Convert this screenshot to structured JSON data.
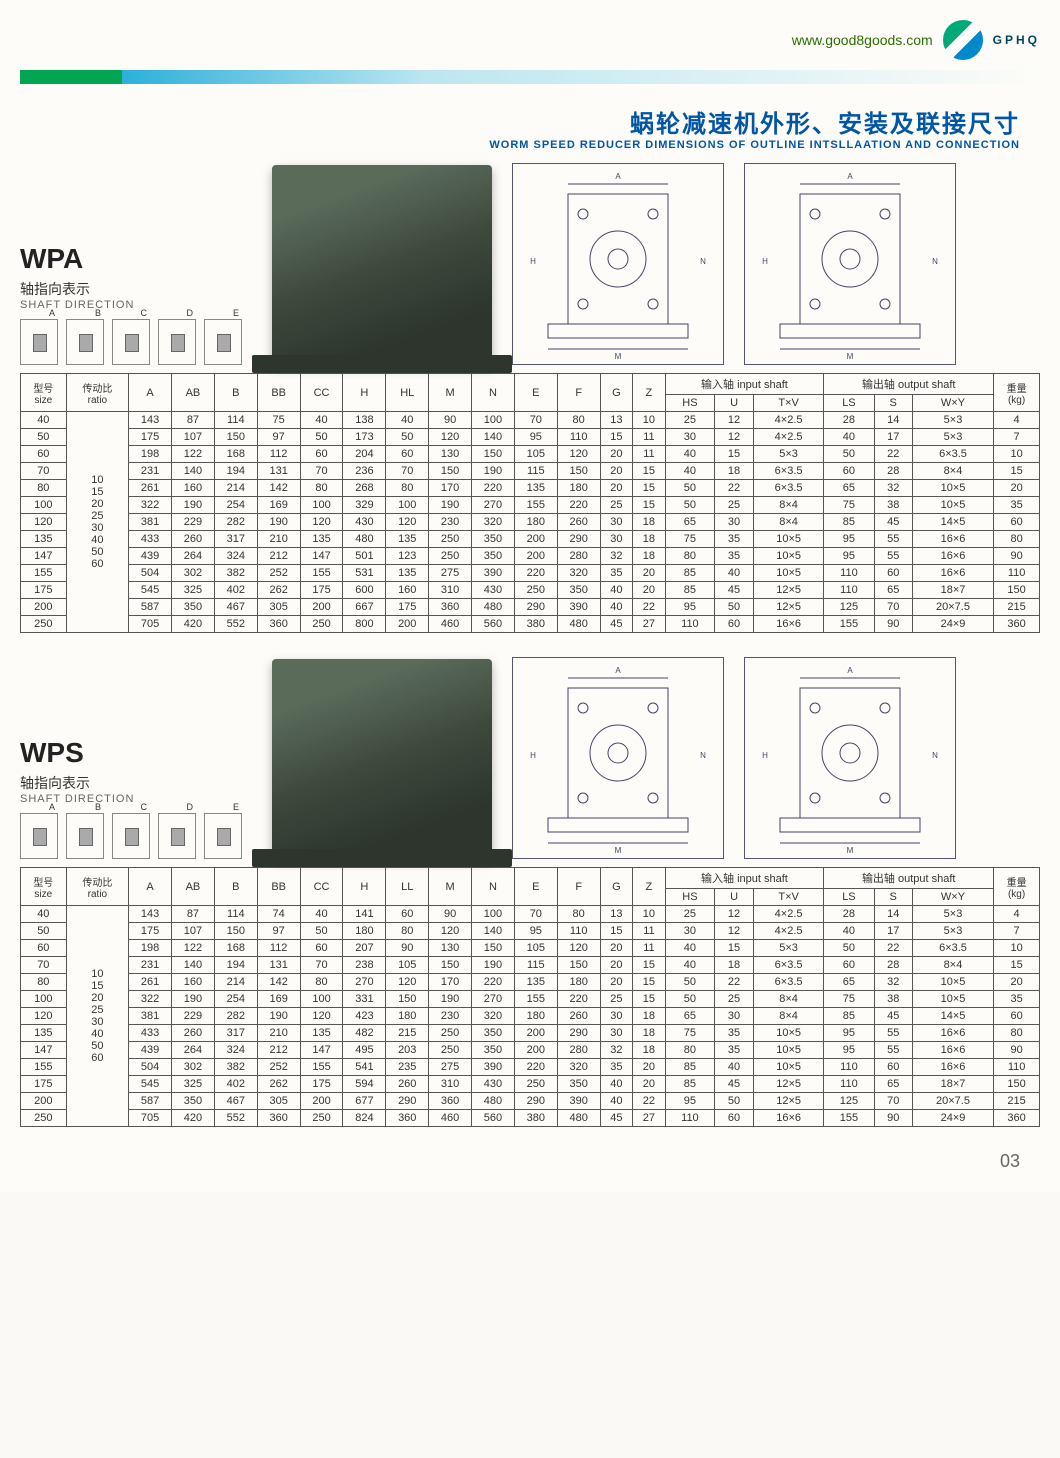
{
  "header": {
    "url": "www.good8goods.com",
    "brand": "GPHQ"
  },
  "title": {
    "cn": "蜗轮减速机外形、安装及联接尺寸",
    "en": "WORM SPEED REDUCER DIMENSIONS OF OUTLINE INTSLLAATION AND CONNECTION"
  },
  "sections": [
    {
      "model": "WPA",
      "sub_cn": "轴指向表示",
      "sub_en": "SHAFT DIRECTION",
      "shaft_labels": [
        "A",
        "B",
        "C",
        "D",
        "E"
      ],
      "table": {
        "head1": {
          "size_cn": "型号",
          "size_en": "size",
          "ratio_cn": "传动比",
          "ratio_en": "ratio",
          "input_shaft": "输入轴 input shaft",
          "output_shaft": "输出轴 output shaft",
          "weight_cn": "重量",
          "weight_en": "(kg)"
        },
        "cols": [
          "A",
          "AB",
          "B",
          "BB",
          "CC",
          "H",
          "HL",
          "M",
          "N",
          "E",
          "F",
          "G",
          "Z",
          "HS",
          "U",
          "T×V",
          "LS",
          "S",
          "W×Y"
        ],
        "ratios": [
          "",
          "",
          "10",
          "15",
          "20",
          "25",
          "30",
          "40",
          "50",
          "60",
          "",
          "",
          ""
        ],
        "rows": [
          {
            "size": "40",
            "d": [
              "143",
              "87",
              "114",
              "75",
              "40",
              "138",
              "40",
              "90",
              "100",
              "70",
              "80",
              "13",
              "10",
              "25",
              "12",
              "4×2.5",
              "28",
              "14",
              "5×3",
              "4"
            ]
          },
          {
            "size": "50",
            "d": [
              "175",
              "107",
              "150",
              "97",
              "50",
              "173",
              "50",
              "120",
              "140",
              "95",
              "110",
              "15",
              "11",
              "30",
              "12",
              "4×2.5",
              "40",
              "17",
              "5×3",
              "7"
            ]
          },
          {
            "size": "60",
            "d": [
              "198",
              "122",
              "168",
              "112",
              "60",
              "204",
              "60",
              "130",
              "150",
              "105",
              "120",
              "20",
              "11",
              "40",
              "15",
              "5×3",
              "50",
              "22",
              "6×3.5",
              "10"
            ]
          },
          {
            "size": "70",
            "d": [
              "231",
              "140",
              "194",
              "131",
              "70",
              "236",
              "70",
              "150",
              "190",
              "115",
              "150",
              "20",
              "15",
              "40",
              "18",
              "6×3.5",
              "60",
              "28",
              "8×4",
              "15"
            ]
          },
          {
            "size": "80",
            "d": [
              "261",
              "160",
              "214",
              "142",
              "80",
              "268",
              "80",
              "170",
              "220",
              "135",
              "180",
              "20",
              "15",
              "50",
              "22",
              "6×3.5",
              "65",
              "32",
              "10×5",
              "20"
            ]
          },
          {
            "size": "100",
            "d": [
              "322",
              "190",
              "254",
              "169",
              "100",
              "329",
              "100",
              "190",
              "270",
              "155",
              "220",
              "25",
              "15",
              "50",
              "25",
              "8×4",
              "75",
              "38",
              "10×5",
              "35"
            ]
          },
          {
            "size": "120",
            "d": [
              "381",
              "229",
              "282",
              "190",
              "120",
              "430",
              "120",
              "230",
              "320",
              "180",
              "260",
              "30",
              "18",
              "65",
              "30",
              "8×4",
              "85",
              "45",
              "14×5",
              "60"
            ]
          },
          {
            "size": "135",
            "d": [
              "433",
              "260",
              "317",
              "210",
              "135",
              "480",
              "135",
              "250",
              "350",
              "200",
              "290",
              "30",
              "18",
              "75",
              "35",
              "10×5",
              "95",
              "55",
              "16×6",
              "80"
            ]
          },
          {
            "size": "147",
            "d": [
              "439",
              "264",
              "324",
              "212",
              "147",
              "501",
              "123",
              "250",
              "350",
              "200",
              "280",
              "32",
              "18",
              "80",
              "35",
              "10×5",
              "95",
              "55",
              "16×6",
              "90"
            ]
          },
          {
            "size": "155",
            "d": [
              "504",
              "302",
              "382",
              "252",
              "155",
              "531",
              "135",
              "275",
              "390",
              "220",
              "320",
              "35",
              "20",
              "85",
              "40",
              "10×5",
              "110",
              "60",
              "16×6",
              "110"
            ]
          },
          {
            "size": "175",
            "d": [
              "545",
              "325",
              "402",
              "262",
              "175",
              "600",
              "160",
              "310",
              "430",
              "250",
              "350",
              "40",
              "20",
              "85",
              "45",
              "12×5",
              "110",
              "65",
              "18×7",
              "150"
            ]
          },
          {
            "size": "200",
            "d": [
              "587",
              "350",
              "467",
              "305",
              "200",
              "667",
              "175",
              "360",
              "480",
              "290",
              "390",
              "40",
              "22",
              "95",
              "50",
              "12×5",
              "125",
              "70",
              "20×7.5",
              "215"
            ]
          },
          {
            "size": "250",
            "d": [
              "705",
              "420",
              "552",
              "360",
              "250",
              "800",
              "200",
              "460",
              "560",
              "380",
              "480",
              "45",
              "27",
              "110",
              "60",
              "16×6",
              "155",
              "90",
              "24×9",
              "360"
            ]
          }
        ]
      }
    },
    {
      "model": "WPS",
      "sub_cn": "轴指向表示",
      "sub_en": "SHAFT DIRECTION",
      "shaft_labels": [
        "A",
        "B",
        "C",
        "D",
        "E"
      ],
      "table": {
        "head1": {
          "size_cn": "型号",
          "size_en": "size",
          "ratio_cn": "传动比",
          "ratio_en": "ratio",
          "input_shaft": "输入轴 input shaft",
          "output_shaft": "输出轴 output shaft",
          "weight_cn": "重量",
          "weight_en": "(kg)"
        },
        "cols": [
          "A",
          "AB",
          "B",
          "BB",
          "CC",
          "H",
          "LL",
          "M",
          "N",
          "E",
          "F",
          "G",
          "Z",
          "HS",
          "U",
          "T×V",
          "LS",
          "S",
          "W×Y"
        ],
        "ratios": [
          "",
          "",
          "10",
          "15",
          "20",
          "25",
          "30",
          "40",
          "50",
          "60",
          "",
          "",
          ""
        ],
        "rows": [
          {
            "size": "40",
            "d": [
              "143",
              "87",
              "114",
              "74",
              "40",
              "141",
              "60",
              "90",
              "100",
              "70",
              "80",
              "13",
              "10",
              "25",
              "12",
              "4×2.5",
              "28",
              "14",
              "5×3",
              "4"
            ]
          },
          {
            "size": "50",
            "d": [
              "175",
              "107",
              "150",
              "97",
              "50",
              "180",
              "80",
              "120",
              "140",
              "95",
              "110",
              "15",
              "11",
              "30",
              "12",
              "4×2.5",
              "40",
              "17",
              "5×3",
              "7"
            ]
          },
          {
            "size": "60",
            "d": [
              "198",
              "122",
              "168",
              "112",
              "60",
              "207",
              "90",
              "130",
              "150",
              "105",
              "120",
              "20",
              "11",
              "40",
              "15",
              "5×3",
              "50",
              "22",
              "6×3.5",
              "10"
            ]
          },
          {
            "size": "70",
            "d": [
              "231",
              "140",
              "194",
              "131",
              "70",
              "238",
              "105",
              "150",
              "190",
              "115",
              "150",
              "20",
              "15",
              "40",
              "18",
              "6×3.5",
              "60",
              "28",
              "8×4",
              "15"
            ]
          },
          {
            "size": "80",
            "d": [
              "261",
              "160",
              "214",
              "142",
              "80",
              "270",
              "120",
              "170",
              "220",
              "135",
              "180",
              "20",
              "15",
              "50",
              "22",
              "6×3.5",
              "65",
              "32",
              "10×5",
              "20"
            ]
          },
          {
            "size": "100",
            "d": [
              "322",
              "190",
              "254",
              "169",
              "100",
              "331",
              "150",
              "190",
              "270",
              "155",
              "220",
              "25",
              "15",
              "50",
              "25",
              "8×4",
              "75",
              "38",
              "10×5",
              "35"
            ]
          },
          {
            "size": "120",
            "d": [
              "381",
              "229",
              "282",
              "190",
              "120",
              "423",
              "180",
              "230",
              "320",
              "180",
              "260",
              "30",
              "18",
              "65",
              "30",
              "8×4",
              "85",
              "45",
              "14×5",
              "60"
            ]
          },
          {
            "size": "135",
            "d": [
              "433",
              "260",
              "317",
              "210",
              "135",
              "482",
              "215",
              "250",
              "350",
              "200",
              "290",
              "30",
              "18",
              "75",
              "35",
              "10×5",
              "95",
              "55",
              "16×6",
              "80"
            ]
          },
          {
            "size": "147",
            "d": [
              "439",
              "264",
              "324",
              "212",
              "147",
              "495",
              "203",
              "250",
              "350",
              "200",
              "280",
              "32",
              "18",
              "80",
              "35",
              "10×5",
              "95",
              "55",
              "16×6",
              "90"
            ]
          },
          {
            "size": "155",
            "d": [
              "504",
              "302",
              "382",
              "252",
              "155",
              "541",
              "235",
              "275",
              "390",
              "220",
              "320",
              "35",
              "20",
              "85",
              "40",
              "10×5",
              "110",
              "60",
              "16×6",
              "110"
            ]
          },
          {
            "size": "175",
            "d": [
              "545",
              "325",
              "402",
              "262",
              "175",
              "594",
              "260",
              "310",
              "430",
              "250",
              "350",
              "40",
              "20",
              "85",
              "45",
              "12×5",
              "110",
              "65",
              "18×7",
              "150"
            ]
          },
          {
            "size": "200",
            "d": [
              "587",
              "350",
              "467",
              "305",
              "200",
              "677",
              "290",
              "360",
              "480",
              "290",
              "390",
              "40",
              "22",
              "95",
              "50",
              "12×5",
              "125",
              "70",
              "20×7.5",
              "215"
            ]
          },
          {
            "size": "250",
            "d": [
              "705",
              "420",
              "552",
              "360",
              "250",
              "824",
              "360",
              "460",
              "560",
              "380",
              "480",
              "45",
              "27",
              "110",
              "60",
              "16×6",
              "155",
              "90",
              "24×9",
              "360"
            ]
          }
        ]
      }
    }
  ],
  "page_num": "03",
  "tech_dim_labels": [
    "A",
    "AB",
    "B",
    "BB",
    "W×Y",
    "T×V",
    "LS",
    "HS",
    "M",
    "N",
    "E",
    "F",
    "H",
    "4-Z",
    "φ"
  ]
}
